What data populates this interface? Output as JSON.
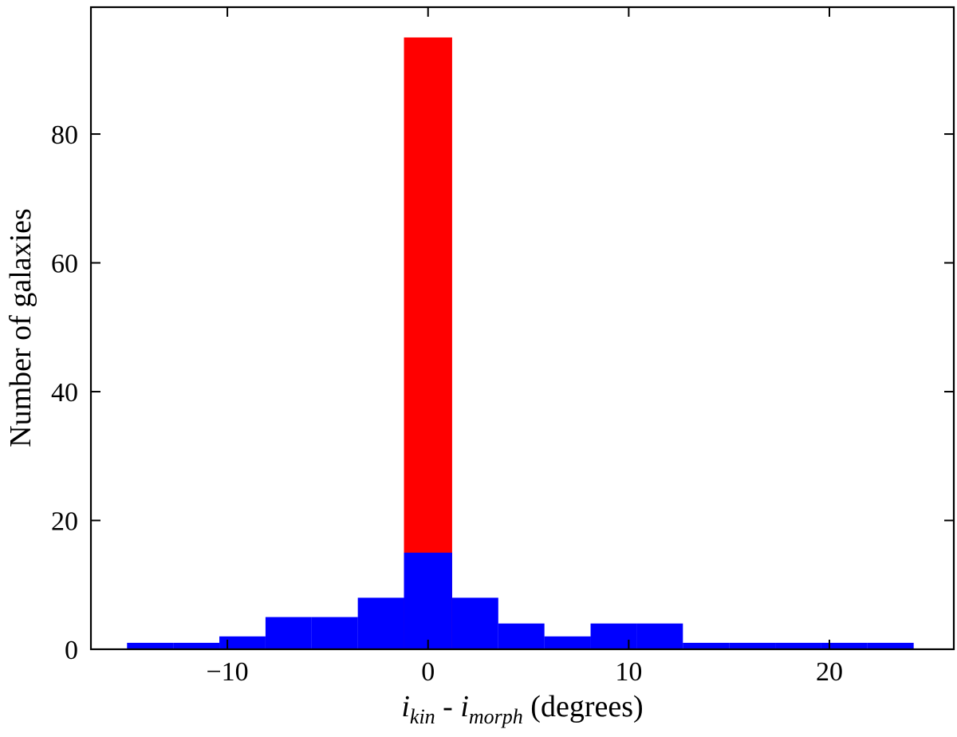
{
  "chart_data": {
    "type": "bar",
    "xlabel": {
      "var1": "i",
      "sub1": "kin",
      "sep": " - ",
      "var2": "i",
      "sub2": "morph",
      "unit": " (degrees)"
    },
    "ylabel": "Number of galaxies",
    "xlim": [
      -16.8,
      26.2
    ],
    "ylim": [
      0,
      99.7
    ],
    "xticks": [
      -10,
      0,
      10,
      20
    ],
    "xtick_labels": [
      "−10",
      "0",
      "10",
      "20"
    ],
    "yticks": [
      0,
      20,
      40,
      60,
      80
    ],
    "ytick_labels": [
      "0",
      "20",
      "40",
      "60",
      "80"
    ],
    "grid": false,
    "series": [
      {
        "color": "#0000ff",
        "bars": [
          {
            "x0": -15.0,
            "x1": -12.7,
            "value": 1
          },
          {
            "x0": -12.7,
            "x1": -10.4,
            "value": 1
          },
          {
            "x0": -10.4,
            "x1": -8.1,
            "value": 2
          },
          {
            "x0": -8.1,
            "x1": -5.8,
            "value": 5
          },
          {
            "x0": -5.8,
            "x1": -3.5,
            "value": 5
          },
          {
            "x0": -3.5,
            "x1": -1.2,
            "value": 8
          },
          {
            "x0": -1.2,
            "x1": 1.2,
            "value": 15
          },
          {
            "x0": 1.2,
            "x1": 3.5,
            "value": 8
          },
          {
            "x0": 3.5,
            "x1": 5.8,
            "value": 4
          },
          {
            "x0": 5.8,
            "x1": 8.1,
            "value": 2
          },
          {
            "x0": 8.1,
            "x1": 10.4,
            "value": 4
          },
          {
            "x0": 10.4,
            "x1": 12.7,
            "value": 4
          },
          {
            "x0": 12.7,
            "x1": 15.0,
            "value": 1
          },
          {
            "x0": 15.0,
            "x1": 17.3,
            "value": 1
          },
          {
            "x0": 17.3,
            "x1": 19.6,
            "value": 1
          },
          {
            "x0": 19.6,
            "x1": 21.9,
            "value": 1
          },
          {
            "x0": 21.9,
            "x1": 24.2,
            "value": 1
          }
        ]
      },
      {
        "color": "#ff0000",
        "bars": [
          {
            "x0": -1.2,
            "x1": 1.2,
            "value": 95
          }
        ]
      }
    ]
  }
}
